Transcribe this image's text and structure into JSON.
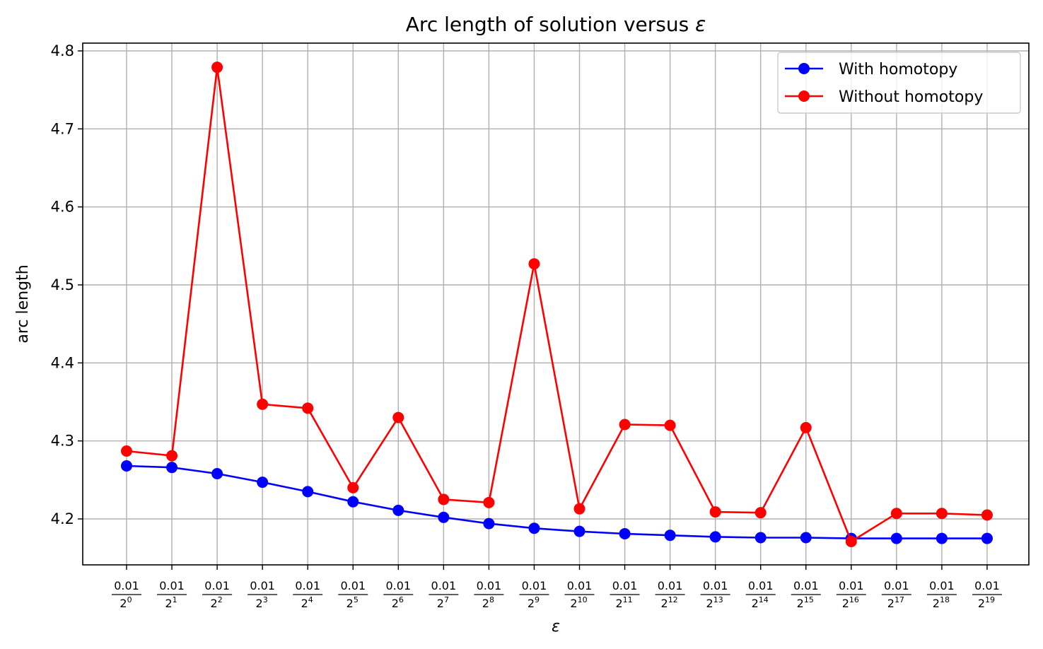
{
  "chart_data": {
    "type": "line",
    "title_prefix": "Arc length of solution versus ",
    "title_symbol": "ε",
    "xlabel": "ε",
    "ylabel": "arc length",
    "ylim": [
      4.14,
      4.81
    ],
    "yticks": [
      "4.2",
      "4.3",
      "4.4",
      "4.5",
      "4.6",
      "4.7",
      "4.8"
    ],
    "ytick_values": [
      4.2,
      4.3,
      4.4,
      4.5,
      4.6,
      4.7,
      4.8
    ],
    "xtick_numerator": "0.01",
    "xtick_base": "2",
    "xtick_exponents": [
      "0",
      "1",
      "2",
      "3",
      "4",
      "5",
      "6",
      "7",
      "8",
      "9",
      "10",
      "11",
      "12",
      "13",
      "14",
      "15",
      "16",
      "17",
      "18",
      "19"
    ],
    "grid": true,
    "legend_position": "top-right",
    "series": [
      {
        "name": "With homotopy",
        "color": "#0000ff",
        "values": [
          4.268,
          4.266,
          4.258,
          4.247,
          4.235,
          4.222,
          4.211,
          4.202,
          4.194,
          4.188,
          4.184,
          4.181,
          4.179,
          4.177,
          4.176,
          4.176,
          4.175,
          4.175,
          4.175,
          4.175
        ]
      },
      {
        "name": "Without homotopy",
        "color": "#ff0000",
        "values": [
          4.287,
          4.281,
          4.779,
          4.347,
          4.342,
          4.24,
          4.33,
          4.225,
          4.221,
          4.527,
          4.213,
          4.321,
          4.32,
          4.209,
          4.208,
          4.317,
          4.171,
          4.207,
          4.207,
          4.205
        ]
      }
    ]
  }
}
